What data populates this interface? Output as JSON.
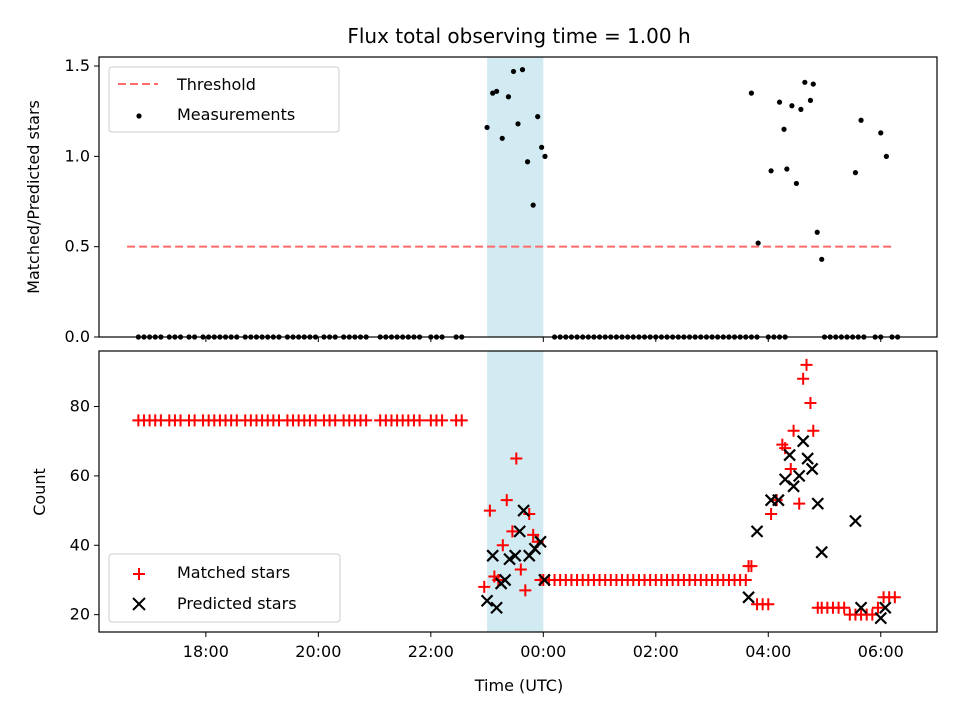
{
  "colors": {
    "threshold": "#ff6b6b",
    "measurement": "#000000",
    "matched": "#ff0000",
    "predicted": "#000000",
    "shade": "#add8e6"
  },
  "chart_data": [
    {
      "type": "scatter",
      "title": "Flux total observing time = 1.00 h",
      "xlabel": "",
      "ylabel": "Matched/Predicted stars",
      "xunit": "hours since 18:00 UTC",
      "xlim": [
        -1.9,
        13.0
      ],
      "ylim": [
        0.0,
        1.55
      ],
      "yticks": [
        0.0,
        0.5,
        1.0,
        1.5
      ],
      "ytick_labels": [
        "0.0",
        "0.5",
        "1.0",
        "1.5"
      ],
      "shaded_region": [
        5.0,
        6.0
      ],
      "legend": {
        "location": "upper left",
        "entries": [
          "Threshold",
          "Measurements"
        ]
      },
      "series": [
        {
          "name": "Threshold",
          "style": "dashed-line",
          "x": [
            -1.4,
            12.2
          ],
          "y": [
            0.5,
            0.5
          ]
        },
        {
          "name": "Measurements",
          "style": "dot",
          "zero_x": [
            -1.2,
            -1.1,
            -1.0,
            -0.9,
            -0.8,
            -0.65,
            -0.55,
            -0.45,
            -0.3,
            -0.2,
            -0.05,
            0.05,
            0.15,
            0.25,
            0.35,
            0.45,
            0.55,
            0.7,
            0.8,
            0.9,
            1.0,
            1.1,
            1.2,
            1.3,
            1.45,
            1.55,
            1.65,
            1.75,
            1.85,
            1.95,
            2.1,
            2.2,
            2.3,
            2.45,
            2.55,
            2.65,
            2.75,
            2.85,
            3.1,
            3.2,
            3.3,
            3.4,
            3.5,
            3.6,
            3.7,
            3.8,
            4.0,
            4.1,
            4.2,
            4.45,
            4.55,
            6.2,
            6.3,
            6.4,
            6.5,
            6.6,
            6.7,
            6.8,
            6.9,
            7.0,
            7.1,
            7.2,
            7.3,
            7.4,
            7.5,
            7.6,
            7.7,
            7.8,
            7.9,
            8.0,
            8.1,
            8.2,
            8.3,
            8.4,
            8.5,
            8.6,
            8.7,
            8.8,
            8.9,
            9.0,
            9.1,
            9.2,
            9.3,
            9.4,
            9.5,
            9.6,
            9.7,
            9.8,
            10.0,
            10.1,
            10.2,
            10.3,
            11.0,
            11.1,
            11.2,
            11.3,
            11.4,
            11.5,
            11.6,
            11.7,
            11.9,
            12.0,
            12.2,
            12.3
          ],
          "x": [
            5.0,
            5.1,
            5.17,
            5.27,
            5.38,
            5.47,
            5.55,
            5.63,
            5.72,
            5.82,
            5.9,
            5.97,
            6.03,
            9.7,
            9.82,
            10.05,
            10.2,
            10.28,
            10.33,
            10.42,
            10.5,
            10.58,
            10.65,
            10.75,
            10.8,
            10.87,
            10.95,
            11.55,
            11.65,
            12.0,
            12.1
          ],
          "y": [
            1.16,
            1.35,
            1.36,
            1.1,
            1.33,
            1.47,
            1.18,
            1.48,
            0.97,
            0.73,
            1.22,
            1.05,
            1.0,
            1.35,
            0.52,
            0.92,
            1.3,
            1.15,
            0.93,
            1.28,
            0.85,
            1.26,
            1.41,
            1.31,
            1.4,
            0.58,
            0.43,
            0.91,
            1.2,
            1.13,
            1.0
          ]
        }
      ]
    },
    {
      "type": "scatter",
      "title": "",
      "xlabel": "Time (UTC)",
      "ylabel": "Count",
      "xunit": "hours since 18:00 UTC",
      "xlim": [
        -1.9,
        13.0
      ],
      "ylim": [
        15,
        96
      ],
      "yticks": [
        20,
        40,
        60,
        80
      ],
      "ytick_labels": [
        "20",
        "40",
        "60",
        "80"
      ],
      "xticks": [
        0,
        2,
        4,
        6,
        8,
        10,
        12
      ],
      "xtick_labels": [
        "18:00",
        "20:00",
        "22:00",
        "00:00",
        "02:00",
        "04:00",
        "06:00"
      ],
      "shaded_region": [
        5.0,
        6.0
      ],
      "legend": {
        "location": "lower left",
        "entries": [
          "Matched stars",
          "Predicted stars"
        ]
      },
      "series": [
        {
          "name": "Matched stars",
          "marker": "+",
          "x": [
            -1.2,
            -1.1,
            -1.0,
            -0.9,
            -0.8,
            -0.65,
            -0.55,
            -0.45,
            -0.3,
            -0.2,
            -0.05,
            0.05,
            0.15,
            0.25,
            0.35,
            0.45,
            0.55,
            0.7,
            0.8,
            0.9,
            1.0,
            1.1,
            1.2,
            1.3,
            1.45,
            1.55,
            1.65,
            1.75,
            1.85,
            1.95,
            2.1,
            2.2,
            2.3,
            2.45,
            2.55,
            2.65,
            2.75,
            2.85,
            3.1,
            3.2,
            3.3,
            3.4,
            3.5,
            3.6,
            3.7,
            3.8,
            4.0,
            4.1,
            4.2,
            4.45,
            4.55,
            4.95,
            5.05,
            5.13,
            5.2,
            5.28,
            5.35,
            5.45,
            5.52,
            5.6,
            5.68,
            5.75,
            5.82,
            5.9,
            5.95,
            6.0,
            6.1,
            6.2,
            6.3,
            6.4,
            6.5,
            6.6,
            6.7,
            6.8,
            6.9,
            7.0,
            7.1,
            7.2,
            7.3,
            7.4,
            7.5,
            7.6,
            7.7,
            7.8,
            7.9,
            8.0,
            8.1,
            8.2,
            8.3,
            8.4,
            8.5,
            8.6,
            8.7,
            8.8,
            8.9,
            9.0,
            9.1,
            9.2,
            9.3,
            9.4,
            9.5,
            9.6,
            9.65,
            9.7,
            9.8,
            9.9,
            10.0,
            10.05,
            10.15,
            10.25,
            10.3,
            10.4,
            10.45,
            10.55,
            10.62,
            10.68,
            10.75,
            10.8,
            10.88,
            10.95,
            11.05,
            11.15,
            11.25,
            11.35,
            11.45,
            11.55,
            11.65,
            11.75,
            11.85,
            11.95,
            12.05,
            12.15,
            12.25
          ],
          "y": [
            76,
            76,
            76,
            76,
            76,
            76,
            76,
            76,
            76,
            76,
            76,
            76,
            76,
            76,
            76,
            76,
            76,
            76,
            76,
            76,
            76,
            76,
            76,
            76,
            76,
            76,
            76,
            76,
            76,
            76,
            76,
            76,
            76,
            76,
            76,
            76,
            76,
            76,
            76,
            76,
            76,
            76,
            76,
            76,
            76,
            76,
            76,
            76,
            76,
            76,
            76,
            28,
            50,
            31,
            30,
            40,
            53,
            44,
            65,
            33,
            27,
            49,
            43,
            41,
            30,
            30,
            30,
            30,
            30,
            30,
            30,
            30,
            30,
            30,
            30,
            30,
            30,
            30,
            30,
            30,
            30,
            30,
            30,
            30,
            30,
            30,
            30,
            30,
            30,
            30,
            30,
            30,
            30,
            30,
            30,
            30,
            30,
            30,
            30,
            30,
            30,
            30,
            34,
            34,
            23,
            23,
            23,
            49,
            53,
            69,
            68,
            62,
            73,
            52,
            88,
            92,
            81,
            73,
            22,
            22,
            22,
            22,
            22,
            22,
            20,
            20,
            20,
            20,
            20,
            22,
            25,
            25,
            25
          ]
        },
        {
          "name": "Predicted stars",
          "marker": "x",
          "x": [
            5.0,
            5.1,
            5.17,
            5.25,
            5.32,
            5.4,
            5.5,
            5.58,
            5.65,
            5.75,
            5.85,
            5.95,
            6.02,
            9.65,
            9.8,
            10.05,
            10.18,
            10.3,
            10.38,
            10.45,
            10.55,
            10.62,
            10.7,
            10.78,
            10.88,
            10.95,
            11.55,
            11.65,
            12.0,
            12.08
          ],
          "y": [
            24,
            37,
            22,
            29,
            30,
            36,
            37,
            44,
            50,
            37,
            39,
            41,
            30,
            25,
            44,
            53,
            53,
            59,
            66,
            57,
            60,
            70,
            65,
            62,
            52,
            38,
            47,
            22,
            19,
            22
          ]
        }
      ]
    }
  ]
}
